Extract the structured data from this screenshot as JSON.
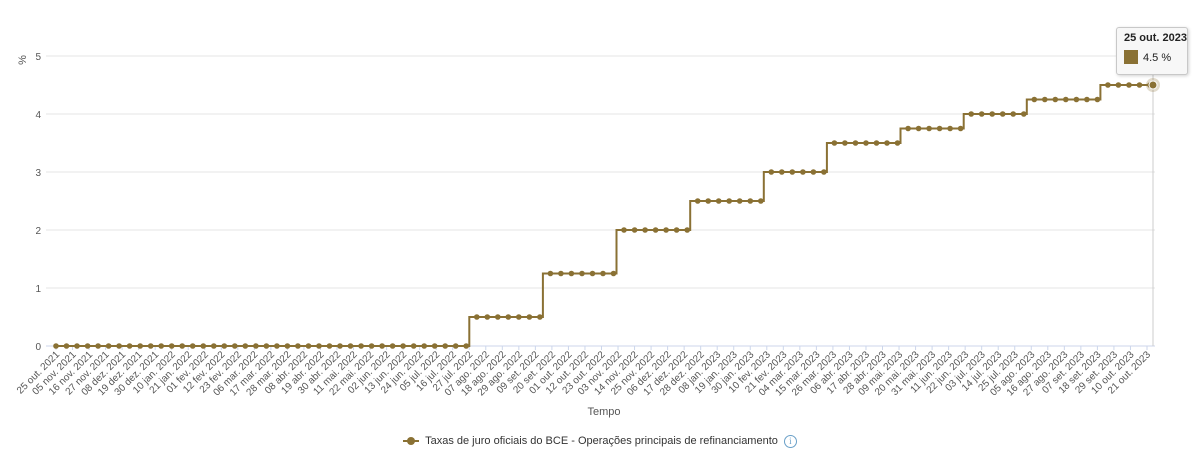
{
  "chart_data": {
    "type": "line",
    "step": true,
    "ylabel": "%",
    "xlabel": "Tempo",
    "ylim": [
      0,
      5
    ],
    "yticks": [
      0,
      1,
      2,
      3,
      4,
      5
    ],
    "grid": true,
    "legend_position": "bottom-center",
    "color": "#8a7134",
    "categories": [
      "25 out. 2021",
      "05 nov. 2021",
      "16 nov. 2021",
      "27 nov. 2021",
      "08 dez. 2021",
      "19 dez. 2021",
      "30 dez. 2021",
      "10 jan. 2022",
      "21 jan. 2022",
      "01 fev. 2022",
      "12 fev. 2022",
      "23 fev. 2022",
      "06 mar. 2022",
      "17 mar. 2022",
      "28 mar. 2022",
      "08 abr. 2022",
      "19 abr. 2022",
      "30 abr. 2022",
      "11 mai. 2022",
      "22 mai. 2022",
      "02 jun. 2022",
      "13 jun. 2022",
      "24 jun. 2022",
      "05 jul. 2022",
      "16 jul. 2022",
      "27 jul. 2022",
      "07 ago. 2022",
      "18 ago. 2022",
      "29 ago. 2022",
      "09 set. 2022",
      "20 set. 2022",
      "01 out. 2022",
      "12 out. 2022",
      "23 out. 2022",
      "03 nov. 2022",
      "14 nov. 2022",
      "25 nov. 2022",
      "06 dez. 2022",
      "17 dez. 2022",
      "28 dez. 2022",
      "08 jan. 2023",
      "19 jan. 2023",
      "30 jan. 2023",
      "10 fev. 2023",
      "21 fev. 2023",
      "04 mar. 2023",
      "15 mar. 2023",
      "26 mar. 2023",
      "06 abr. 2023",
      "17 abr. 2023",
      "28 abr. 2023",
      "09 mai. 2023",
      "20 mai. 2023",
      "31 mai. 2023",
      "11 jun. 2023",
      "22 jun. 2023",
      "03 jul. 2023",
      "14 jul. 2023",
      "25 jul. 2023",
      "05 ago. 2023",
      "16 ago. 2023",
      "27 ago. 2023",
      "07 set. 2023",
      "18 set. 2023",
      "29 set. 2023",
      "10 out. 2023",
      "21 out. 2023"
    ],
    "series": [
      {
        "name": "Taxas de juro oficiais do BCE - Operações principais de refinanciamento",
        "steps": [
          {
            "from": "25 out. 2021",
            "value": 0
          },
          {
            "from": "27 jul. 2022",
            "value": 0.5
          },
          {
            "from": "14 set. 2022",
            "value": 1.25
          },
          {
            "from": "02 nov. 2022",
            "value": 2.0
          },
          {
            "from": "21 dez. 2022",
            "value": 2.5
          },
          {
            "from": "08 fev. 2023",
            "value": 3.0
          },
          {
            "from": "22 mar. 2023",
            "value": 3.5
          },
          {
            "from": "10 mai. 2023",
            "value": 3.75
          },
          {
            "from": "21 jun. 2023",
            "value": 4.0
          },
          {
            "from": "02 ago. 2023",
            "value": 4.25
          },
          {
            "from": "20 set. 2023",
            "value": 4.5
          }
        ],
        "end": "25 out. 2023",
        "marker_interval_days": 7
      }
    ],
    "tooltip": {
      "date": "25 out. 2023",
      "value": "4.5 %"
    }
  },
  "legend": {
    "label": "Taxas de juro oficiais do BCE - Operações principais de refinanciamento",
    "info_icon": "info-icon"
  }
}
